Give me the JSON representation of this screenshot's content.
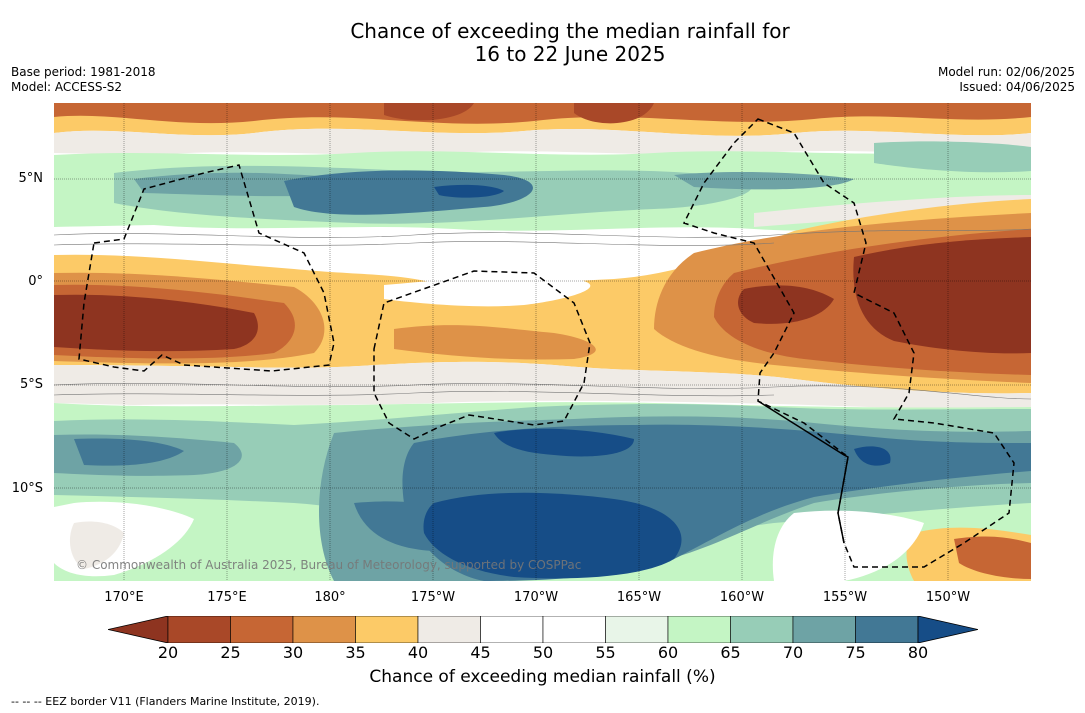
{
  "title": {
    "line1": "Chance of exceeding the median rainfall for",
    "line2": "16 to 22 June 2025"
  },
  "meta": {
    "base_period": "Base period: 1981-2018",
    "model": "Model: ACCESS-S2",
    "model_run": "Model run: 02/06/2025",
    "issued": "Issued: 04/06/2025"
  },
  "map": {
    "lat_labels": [
      "5°N",
      "0°",
      "5°S",
      "10°S"
    ],
    "lon_labels": [
      "170°E",
      "175°E",
      "180°",
      "175°W",
      "170°W",
      "165°W",
      "160°W",
      "155°W",
      "150°W"
    ],
    "copyright": "© Commonwealth of Australia 2025, Bureau of Meteorology, supported by COSPPac"
  },
  "colorbar": {
    "ticks": [
      "20",
      "25",
      "30",
      "35",
      "40",
      "45",
      "50",
      "55",
      "60",
      "65",
      "70",
      "75",
      "80"
    ],
    "colors": [
      "#8e3420",
      "#a94828",
      "#c66634",
      "#de9248",
      "#fcca67",
      "#efebe6",
      "#ffffff",
      "#ffffff",
      "#e8f5e8",
      "#c4f5c4",
      "#97cdb7",
      "#6ea3a5",
      "#427895",
      "#164d87"
    ],
    "label": "Chance of exceeding median rainfall (%)"
  },
  "footer": "--  --  -- EEZ border V11 (Flanders Marine Institute, 2019)."
}
